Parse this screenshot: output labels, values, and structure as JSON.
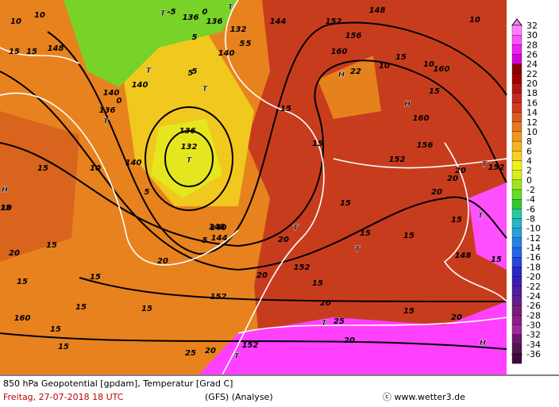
{
  "map": {
    "labels": [
      "10",
      "T",
      "-5",
      "136",
      "0",
      "T",
      "136",
      "144",
      "5",
      "152",
      "148",
      "5",
      "132",
      "140",
      "156",
      "10",
      "10",
      "15",
      "15",
      "148",
      "136",
      "140",
      "0",
      "T",
      "5",
      "5",
      "T",
      "T",
      "160",
      "5",
      "10",
      "15",
      "H",
      "22",
      "10",
      "160",
      "136",
      "140",
      "132",
      "T",
      "H",
      "15",
      "160",
      "15",
      "156",
      "15",
      "15",
      "10",
      "10",
      "152",
      "T",
      "152",
      "20",
      "20",
      "H",
      "15",
      "140",
      "148",
      "15",
      "15",
      "15",
      "15",
      "5",
      "140",
      "5",
      "20",
      "T",
      "144",
      "T",
      "15",
      "15",
      "20",
      "T",
      "15",
      "15",
      "15",
      "20",
      "20",
      "15",
      "148",
      "15",
      "152",
      "20",
      "20",
      "152",
      "15",
      "160",
      "15",
      "20",
      "T",
      "25",
      "20",
      "20",
      "H",
      "15",
      "25",
      "T",
      "152"
    ]
  },
  "scale": {
    "values": [
      32,
      30,
      28,
      26,
      24,
      22,
      20,
      18,
      16,
      14,
      12,
      10,
      8,
      6,
      4,
      2,
      0,
      -2,
      -4,
      -6,
      -8,
      -10,
      -12,
      -14,
      -16,
      -18,
      -20,
      -22,
      -24,
      -26,
      -28,
      -30,
      -32,
      -34,
      -36
    ],
    "colors": [
      "#ff80ff",
      "#ff50ff",
      "#f020f0",
      "#d800d8",
      "#8c0000",
      "#a00000",
      "#b41414",
      "#c82820",
      "#d23c1e",
      "#dc5a1e",
      "#e6781e",
      "#f0961e",
      "#f5b41e",
      "#f5d21e",
      "#f0f01e",
      "#d2f01e",
      "#a0e61e",
      "#64dc28",
      "#32c832",
      "#28c8a0",
      "#28b4c8",
      "#28a0dc",
      "#2882e6",
      "#2864e6",
      "#2846dc",
      "#2828c8",
      "#3c1eb4",
      "#501ea0",
      "#641e8c",
      "#781e78",
      "#8c1e8c",
      "#a028a0",
      "#6e146e",
      "#501450",
      "#3c0a3c"
    ]
  },
  "footer": {
    "line1": "850 hPa Geopotential [gpdam], Temperatur [Grad C]",
    "date": "Freitag, 27-07-2018  18 UTC",
    "model": "(GFS)  (Analyse)",
    "credit": "ⓒ www.wetter3.de"
  }
}
